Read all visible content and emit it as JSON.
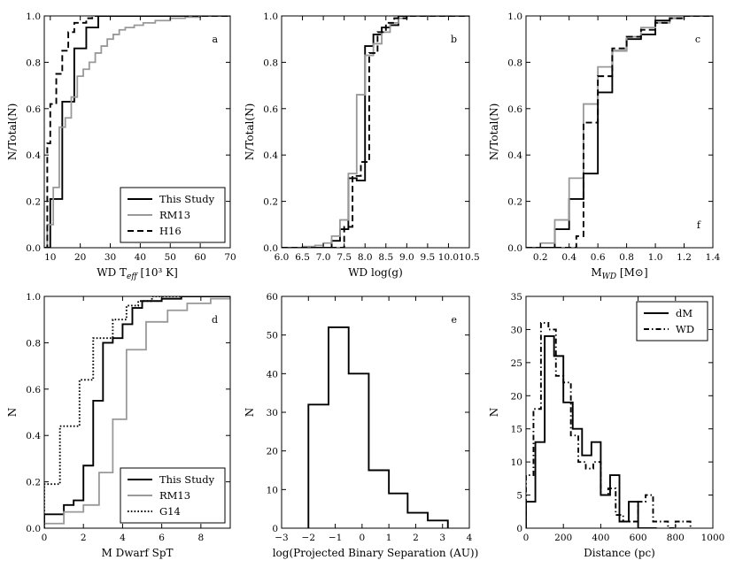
{
  "chart_data": [
    {
      "id": "a",
      "type": "line",
      "step": true,
      "panel_letter": "a",
      "extra_label": "",
      "xlabel": "WD T",
      "xlabel_sub": "eff",
      "xlabel_tail": " [10³ K]",
      "ylabel": "N/Total(N)",
      "xlim": [
        8,
        70
      ],
      "ylim": [
        0,
        1
      ],
      "xticks": [
        10,
        20,
        30,
        40,
        50,
        60,
        70
      ],
      "xtick_labels": [
        "10",
        "20",
        "30",
        "40",
        "50",
        "60",
        "70"
      ],
      "yticks": [
        0,
        0.2,
        0.4,
        0.6,
        0.8,
        1.0
      ],
      "ytick_labels": [
        "0.0",
        "0.2",
        "0.4",
        "0.6",
        "0.8",
        "1.0"
      ],
      "legend": {
        "position": "lower-right",
        "entries": [
          "This Study",
          "RM13",
          "H16"
        ]
      },
      "series": [
        {
          "name": "This Study",
          "color": "#000000",
          "style": "solid",
          "x": [
            8,
            10,
            12,
            14,
            16,
            18,
            20,
            22,
            24,
            26,
            28,
            30,
            35,
            40,
            70
          ],
          "y": [
            0.0,
            0.21,
            0.21,
            0.63,
            0.63,
            0.86,
            0.86,
            0.95,
            0.95,
            1.0,
            1.0,
            1.0,
            1.0,
            1.0,
            1.0
          ]
        },
        {
          "name": "RM13",
          "color": "#999999",
          "style": "solid",
          "x": [
            8,
            9,
            11,
            13,
            15,
            17,
            19,
            21,
            23,
            25,
            27,
            29,
            31,
            33,
            35,
            38,
            41,
            45,
            50,
            55,
            60,
            65,
            70
          ],
          "y": [
            0.0,
            0.1,
            0.26,
            0.52,
            0.56,
            0.65,
            0.74,
            0.77,
            0.8,
            0.84,
            0.87,
            0.9,
            0.92,
            0.94,
            0.95,
            0.96,
            0.97,
            0.98,
            0.99,
            0.995,
            1.0,
            1.0,
            1.0
          ]
        },
        {
          "name": "H16",
          "color": "#000000",
          "style": "dashed",
          "x": [
            8,
            9,
            10,
            12,
            14,
            16,
            18,
            20,
            22,
            24,
            70
          ],
          "y": [
            0.0,
            0.45,
            0.62,
            0.75,
            0.85,
            0.93,
            0.97,
            0.97,
            0.99,
            1.0,
            1.0
          ]
        }
      ]
    },
    {
      "id": "b",
      "type": "line",
      "step": true,
      "panel_letter": "b",
      "extra_label": "",
      "xlabel": "WD log(g)",
      "xlabel_sub": "",
      "xlabel_tail": "",
      "ylabel": "N/Total(N)",
      "xlim": [
        6.0,
        10.5
      ],
      "ylim": [
        0,
        1
      ],
      "xticks": [
        6.0,
        6.5,
        7.0,
        7.5,
        8.0,
        8.5,
        9.0,
        9.5,
        10.0,
        10.5
      ],
      "xtick_labels": [
        "6.0",
        "6.5",
        "7.0",
        "7.5",
        "8.0",
        "8.5",
        "9.0",
        "9.5",
        "10.0",
        "10.5"
      ],
      "yticks": [
        0,
        0.2,
        0.4,
        0.6,
        0.8,
        1.0
      ],
      "ytick_labels": [
        "0.0",
        "0.2",
        "0.4",
        "0.6",
        "0.8",
        "1.0"
      ],
      "legend": null,
      "series": [
        {
          "name": "This Study",
          "color": "#000000",
          "style": "solid",
          "x": [
            6.0,
            6.8,
            7.2,
            7.4,
            7.6,
            7.8,
            8.0,
            8.2,
            8.4,
            8.6,
            8.8,
            9.0,
            10.5
          ],
          "y": [
            0.0,
            0.0,
            0.03,
            0.08,
            0.3,
            0.29,
            0.87,
            0.92,
            0.95,
            0.96,
            1.0,
            1.0,
            1.0
          ]
        },
        {
          "name": "RM13",
          "color": "#999999",
          "style": "solid",
          "x": [
            6.0,
            6.5,
            6.8,
            7.0,
            7.2,
            7.4,
            7.6,
            7.8,
            8.0,
            8.2,
            8.4,
            8.6,
            8.8,
            9.0,
            10.5
          ],
          "y": [
            0.0,
            0.005,
            0.01,
            0.02,
            0.05,
            0.12,
            0.32,
            0.66,
            0.83,
            0.88,
            0.93,
            0.97,
            0.99,
            1.0,
            1.0
          ]
        },
        {
          "name": "H16",
          "color": "#000000",
          "style": "dashed",
          "x": [
            6.0,
            7.0,
            7.5,
            7.7,
            7.9,
            8.1,
            8.3,
            8.5,
            8.7,
            9.0,
            10.5
          ],
          "y": [
            0.0,
            0.0,
            0.09,
            0.31,
            0.37,
            0.84,
            0.93,
            0.97,
            0.99,
            1.0,
            1.0
          ]
        }
      ]
    },
    {
      "id": "c",
      "type": "line",
      "step": true,
      "panel_letter": "c",
      "extra_label": "f",
      "xlabel": "M",
      "xlabel_sub": "WD",
      "xlabel_tail": " [M⊙]",
      "ylabel": "N/Total(N)",
      "xlim": [
        0.1,
        1.4
      ],
      "ylim": [
        0,
        1
      ],
      "xticks": [
        0.2,
        0.4,
        0.6,
        0.8,
        1.0,
        1.2,
        1.4
      ],
      "xtick_labels": [
        "0.2",
        "0.4",
        "0.6",
        "0.8",
        "1.0",
        "1.2",
        "1.4"
      ],
      "yticks": [
        0,
        0.2,
        0.4,
        0.6,
        0.8,
        1.0
      ],
      "ytick_labels": [
        "0.0",
        "0.2",
        "0.4",
        "0.6",
        "0.8",
        "1.0"
      ],
      "legend": null,
      "series": [
        {
          "name": "This Study",
          "color": "#000000",
          "style": "solid",
          "x": [
            0.1,
            0.2,
            0.3,
            0.4,
            0.5,
            0.6,
            0.7,
            0.8,
            0.9,
            1.0,
            1.1,
            1.2,
            1.3,
            1.4
          ],
          "y": [
            0.0,
            0.0,
            0.08,
            0.21,
            0.32,
            0.67,
            0.85,
            0.9,
            0.92,
            0.98,
            0.99,
            1.0,
            1.0,
            1.0
          ]
        },
        {
          "name": "RM13",
          "color": "#999999",
          "style": "solid",
          "x": [
            0.1,
            0.2,
            0.3,
            0.4,
            0.5,
            0.6,
            0.7,
            0.8,
            0.9,
            1.0,
            1.1,
            1.2,
            1.4
          ],
          "y": [
            0.0,
            0.02,
            0.12,
            0.3,
            0.62,
            0.78,
            0.85,
            0.91,
            0.95,
            0.97,
            0.99,
            1.0,
            1.0
          ]
        },
        {
          "name": "H16",
          "color": "#000000",
          "style": "dashed",
          "x": [
            0.1,
            0.3,
            0.45,
            0.5,
            0.6,
            0.7,
            0.8,
            0.9,
            1.0,
            1.1,
            1.2,
            1.4
          ],
          "y": [
            0.0,
            0.0,
            0.05,
            0.54,
            0.74,
            0.86,
            0.91,
            0.94,
            0.97,
            0.99,
            1.0,
            1.0
          ]
        }
      ]
    },
    {
      "id": "d",
      "type": "line",
      "step": true,
      "panel_letter": "d",
      "extra_label": "",
      "xlabel": "M Dwarf SpT",
      "xlabel_sub": "",
      "xlabel_tail": "",
      "ylabel": "N",
      "xlim": [
        0,
        9.5
      ],
      "ylim": [
        0,
        1
      ],
      "xticks": [
        0,
        2,
        4,
        6,
        8
      ],
      "xtick_labels": [
        "0",
        "2",
        "4",
        "6",
        "8"
      ],
      "yticks": [
        0,
        0.2,
        0.4,
        0.6,
        0.8,
        1.0
      ],
      "ytick_labels": [
        "0.0",
        "0.2",
        "0.4",
        "0.6",
        "0.8",
        "1.0"
      ],
      "legend": {
        "position": "lower-right",
        "entries": [
          "This Study",
          "RM13",
          "G14"
        ]
      },
      "series": [
        {
          "name": "This Study",
          "color": "#000000",
          "style": "solid",
          "x": [
            0,
            1,
            1.5,
            2,
            2.5,
            3,
            3.5,
            4,
            4.5,
            5,
            6,
            7,
            9.5
          ],
          "y": [
            0.06,
            0.1,
            0.12,
            0.27,
            0.55,
            0.8,
            0.82,
            0.88,
            0.95,
            0.98,
            0.99,
            1.0,
            1.0
          ]
        },
        {
          "name": "RM13",
          "color": "#999999",
          "style": "solid",
          "x": [
            0,
            1,
            2,
            2.8,
            3.5,
            4.2,
            5.2,
            6.3,
            7.3,
            8.5,
            9.5
          ],
          "y": [
            0.02,
            0.07,
            0.1,
            0.24,
            0.47,
            0.77,
            0.89,
            0.94,
            0.97,
            0.99,
            1.0
          ]
        },
        {
          "name": "G14",
          "color": "#000000",
          "style": "dotted",
          "x": [
            0,
            0.8,
            1.8,
            2.5,
            3,
            3.5,
            4.2,
            4.8,
            5.5,
            6.5,
            9.5
          ],
          "y": [
            0.19,
            0.44,
            0.64,
            0.82,
            0.82,
            0.9,
            0.96,
            0.98,
            1.0,
            1.0,
            1.0
          ]
        }
      ]
    },
    {
      "id": "e",
      "type": "line",
      "step": true,
      "panel_letter": "e",
      "extra_label": "",
      "xlabel": "log(Projected Binary Separation (AU))",
      "xlabel_sub": "",
      "xlabel_tail": "",
      "ylabel": "N",
      "xlim": [
        -3,
        4
      ],
      "ylim": [
        0,
        60
      ],
      "xticks": [
        -3,
        -2,
        -1,
        0,
        1,
        2,
        3,
        4
      ],
      "xtick_labels": [
        "−3",
        "−2",
        "−1",
        "0",
        "1",
        "2",
        "3",
        "4"
      ],
      "yticks": [
        0,
        10,
        20,
        30,
        40,
        50,
        60
      ],
      "ytick_labels": [
        "0",
        "10",
        "20",
        "30",
        "40",
        "50",
        "60"
      ],
      "legend": null,
      "series": [
        {
          "name": "Separation",
          "color": "#000000",
          "style": "solid",
          "x": [
            -2.0,
            -1.25,
            -0.5,
            0.25,
            1.0,
            1.7,
            2.45,
            3.2
          ],
          "y": [
            32,
            52,
            40,
            15,
            9,
            4,
            2,
            0
          ]
        }
      ]
    },
    {
      "id": "f",
      "type": "line",
      "step": true,
      "panel_letter": "",
      "extra_label": "",
      "xlabel": "Distance (pc)",
      "xlabel_sub": "",
      "xlabel_tail": "",
      "ylabel": "N",
      "xlim": [
        0,
        1000
      ],
      "ylim": [
        0,
        35
      ],
      "xticks": [
        0,
        200,
        400,
        600,
        800,
        1000
      ],
      "xtick_labels": [
        "0",
        "200",
        "400",
        "600",
        "800",
        "1000"
      ],
      "yticks": [
        0,
        5,
        10,
        15,
        20,
        25,
        30,
        35
      ],
      "ytick_labels": [
        "0",
        "5",
        "10",
        "15",
        "20",
        "25",
        "30",
        "35"
      ],
      "legend": {
        "position": "top-right",
        "entries": [
          "dM",
          "WD"
        ]
      },
      "series": [
        {
          "name": "dM",
          "color": "#000000",
          "style": "solid",
          "x": [
            0,
            50,
            100,
            150,
            200,
            250,
            300,
            350,
            400,
            450,
            500,
            550,
            600,
            650,
            700
          ],
          "y": [
            4,
            13,
            29,
            26,
            19,
            15,
            11,
            13,
            5,
            8,
            1,
            4,
            0,
            0,
            0
          ]
        },
        {
          "name": "WD",
          "color": "#000000",
          "style": "dashdot",
          "x": [
            0,
            40,
            80,
            120,
            160,
            200,
            240,
            280,
            320,
            360,
            400,
            440,
            480,
            520,
            560,
            600,
            640,
            680,
            720,
            760,
            800,
            840,
            880
          ],
          "y": [
            8,
            18,
            31,
            30,
            23,
            22,
            14,
            10,
            9,
            10,
            5,
            6,
            2,
            1,
            1,
            4,
            5,
            1,
            1,
            0,
            1,
            1,
            0
          ]
        }
      ]
    }
  ]
}
